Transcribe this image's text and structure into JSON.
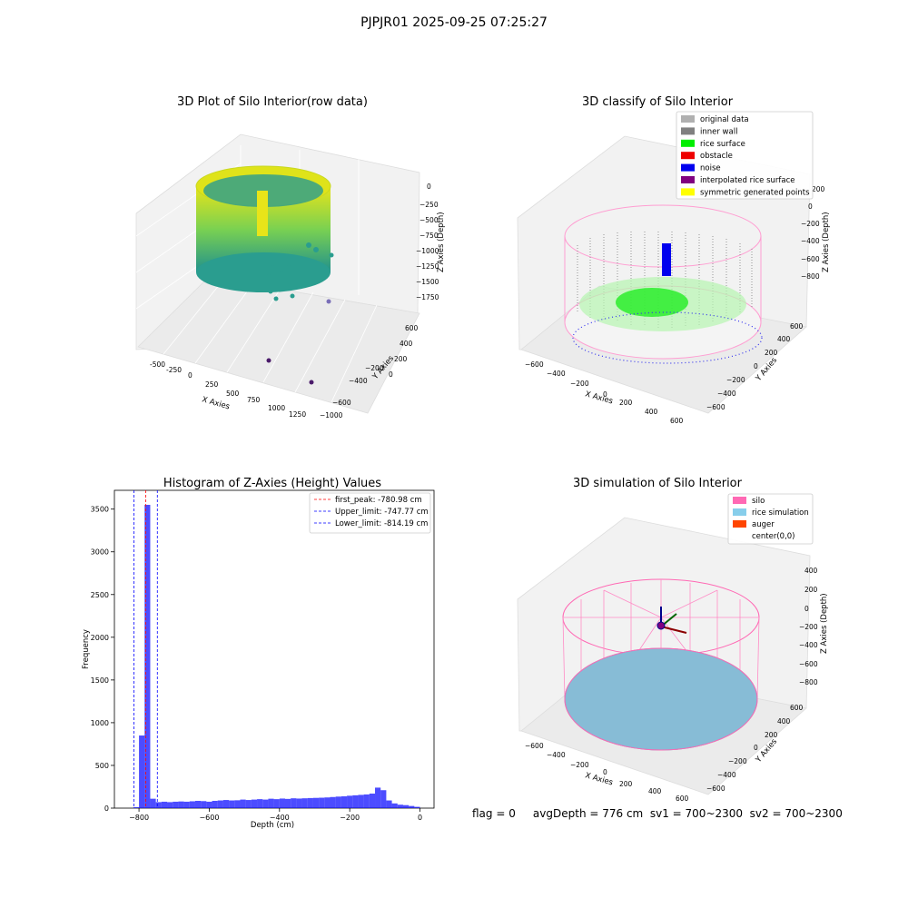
{
  "figure": {
    "suptitle": "PJPJR01 2025-09-25 07:25:27",
    "footer": "flag = 0     avgDepth = 776 cm  sv1 = 700~2300  sv2 = 700~2300"
  },
  "panels": {
    "raw": {
      "title": "3D Plot of Silo Interior(row data)",
      "xlabel": "X Axies",
      "ylabel": "Y Axies",
      "zlabel": "Z Axies (Depth)",
      "xticks": [
        "-500",
        "-250",
        "0",
        "250",
        "500",
        "750",
        "1000",
        "1250"
      ],
      "yticks": [
        "600",
        "400",
        "200",
        "0",
        "−200",
        "−400",
        "−600",
        "−800",
        "−1000"
      ],
      "zticks": [
        "0",
        "−250",
        "−500",
        "−750",
        "−1000",
        "−1250",
        "−1500",
        "−1750"
      ]
    },
    "classify": {
      "title": "3D classify of Silo Interior",
      "xlabel": "X Axies",
      "ylabel": "Y Axies",
      "zlabel": "Z Axies (Depth)",
      "xticks": [
        "−600",
        "−400",
        "−200",
        "0",
        "200",
        "400",
        "600"
      ],
      "yticks": [
        "600",
        "400",
        "200",
        "0",
        "−200",
        "−400",
        "−600"
      ],
      "zticks": [
        "200",
        "0",
        "−200",
        "−400",
        "−600",
        "−800"
      ],
      "legend": [
        {
          "label": "original data",
          "color": "#b0b0b0"
        },
        {
          "label": "inner wall",
          "color": "#808080"
        },
        {
          "label": "rice surface",
          "color": "#00ee00"
        },
        {
          "label": "obstacle",
          "color": "#ee0000"
        },
        {
          "label": "noise",
          "color": "#0000ee"
        },
        {
          "label": "interpolated rice surface",
          "color": "#800080"
        },
        {
          "label": "symmetric generated points",
          "color": "#ffff00"
        }
      ]
    },
    "simulation": {
      "title": "3D simulation of Silo Interior",
      "xlabel": "X Axies",
      "ylabel": "Y Axies",
      "zlabel": "Z Axies (Depth)",
      "xticks": [
        "−600",
        "−400",
        "−200",
        "0",
        "200",
        "400",
        "600"
      ],
      "yticks": [
        "600",
        "400",
        "200",
        "0",
        "−200",
        "−400",
        "−600"
      ],
      "zticks": [
        "400",
        "200",
        "0",
        "−200",
        "−400",
        "−600",
        "−800"
      ],
      "legend": [
        {
          "label": "silo",
          "color": "#ff69b4"
        },
        {
          "label": "rice simulation",
          "color": "#87ceeb"
        },
        {
          "label": "auger",
          "color": "#ff4500"
        },
        {
          "label": "center(0,0)",
          "color": "#ffffff"
        }
      ]
    }
  },
  "chart_data": {
    "type": "bar",
    "title": "Histogram of Z-Axies (Height) Values",
    "xlabel": "Depth (cm)",
    "ylabel": "Frequency",
    "xlim": [
      -870,
      40
    ],
    "ylim": [
      0,
      3720
    ],
    "xticks": [
      -800,
      -600,
      -400,
      -200,
      0
    ],
    "yticks": [
      0,
      500,
      1000,
      1500,
      2000,
      2500,
      3000,
      3500
    ],
    "bar_color": "#0000ff",
    "bin_width": 16,
    "bins": [
      [
        -816,
        10
      ],
      [
        -800,
        850
      ],
      [
        -784,
        3550
      ],
      [
        -768,
        110
      ],
      [
        -752,
        70
      ],
      [
        -736,
        75
      ],
      [
        -720,
        70
      ],
      [
        -704,
        75
      ],
      [
        -688,
        78
      ],
      [
        -672,
        75
      ],
      [
        -656,
        80
      ],
      [
        -640,
        85
      ],
      [
        -624,
        82
      ],
      [
        -608,
        75
      ],
      [
        -592,
        85
      ],
      [
        -576,
        90
      ],
      [
        -560,
        95
      ],
      [
        -544,
        90
      ],
      [
        -528,
        92
      ],
      [
        -512,
        100
      ],
      [
        -496,
        95
      ],
      [
        -480,
        100
      ],
      [
        -464,
        105
      ],
      [
        -448,
        100
      ],
      [
        -432,
        110
      ],
      [
        -416,
        105
      ],
      [
        -400,
        112
      ],
      [
        -384,
        108
      ],
      [
        -368,
        115
      ],
      [
        -352,
        112
      ],
      [
        -336,
        115
      ],
      [
        -320,
        118
      ],
      [
        -304,
        120
      ],
      [
        -288,
        122
      ],
      [
        -272,
        125
      ],
      [
        -256,
        130
      ],
      [
        -240,
        135
      ],
      [
        -224,
        138
      ],
      [
        -208,
        145
      ],
      [
        -192,
        150
      ],
      [
        -176,
        155
      ],
      [
        -160,
        160
      ],
      [
        -144,
        170
      ],
      [
        -128,
        240
      ],
      [
        -112,
        210
      ],
      [
        -96,
        90
      ],
      [
        -80,
        55
      ],
      [
        -64,
        40
      ],
      [
        -48,
        35
      ],
      [
        -32,
        25
      ],
      [
        -16,
        15
      ]
    ],
    "lines": [
      {
        "label": "first_peak: -780.98 cm",
        "x": -780.98,
        "color": "#ff0000"
      },
      {
        "label": "Upper_limit: -747.77 cm",
        "x": -747.77,
        "color": "#0000ff"
      },
      {
        "label": "Lower_limit: -814.19 cm",
        "x": -814.19,
        "color": "#0000ff"
      }
    ],
    "legend_position": "top-right"
  }
}
